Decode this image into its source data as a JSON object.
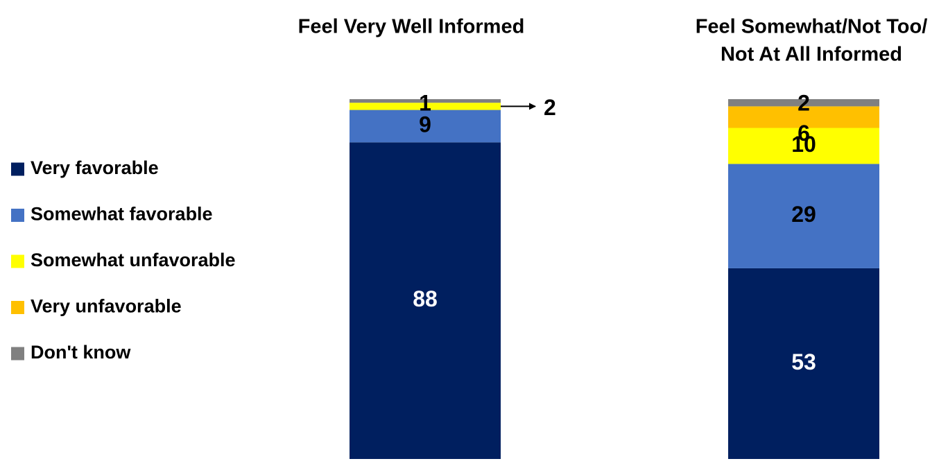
{
  "chart_data": {
    "type": "bar",
    "stacked": true,
    "orientation": "vertical",
    "categories": [
      "Feel Very Well Informed",
      "Feel Somewhat/Not Too/ Not At All Informed"
    ],
    "category_title_lines": [
      [
        "Feel Very Well Informed"
      ],
      [
        "Feel Somewhat/Not Too/",
        "Not At All Informed"
      ]
    ],
    "series": [
      {
        "name": "Very favorable",
        "values": [
          88,
          53
        ],
        "labels": [
          "88",
          "53"
        ],
        "color": "#001f5f",
        "label_color": "#ffffff"
      },
      {
        "name": "Somewhat favorable",
        "values": [
          9,
          29
        ],
        "labels": [
          "9",
          "29"
        ],
        "color": "#4472c4",
        "label_color": "#000000"
      },
      {
        "name": "Somewhat unfavorable",
        "values": [
          2,
          10
        ],
        "labels": [
          "2",
          "10"
        ],
        "color": "#ffff00",
        "label_color": "#000000"
      },
      {
        "name": "Very unfavorable",
        "values": [
          0,
          6
        ],
        "labels": [
          "",
          "6"
        ],
        "color": "#ffc000",
        "label_color": "#000000"
      },
      {
        "name": "Don't know",
        "values": [
          1,
          2
        ],
        "labels": [
          "1",
          "2"
        ],
        "color": "#808080",
        "label_color": "#000000"
      }
    ],
    "ylim": [
      0,
      100
    ],
    "grid": false,
    "legend_position": "left",
    "callouts": [
      {
        "category_index": 0,
        "series_index": 2,
        "label": "2",
        "style": "arrow-right"
      }
    ],
    "xlabel": "",
    "ylabel": ""
  }
}
